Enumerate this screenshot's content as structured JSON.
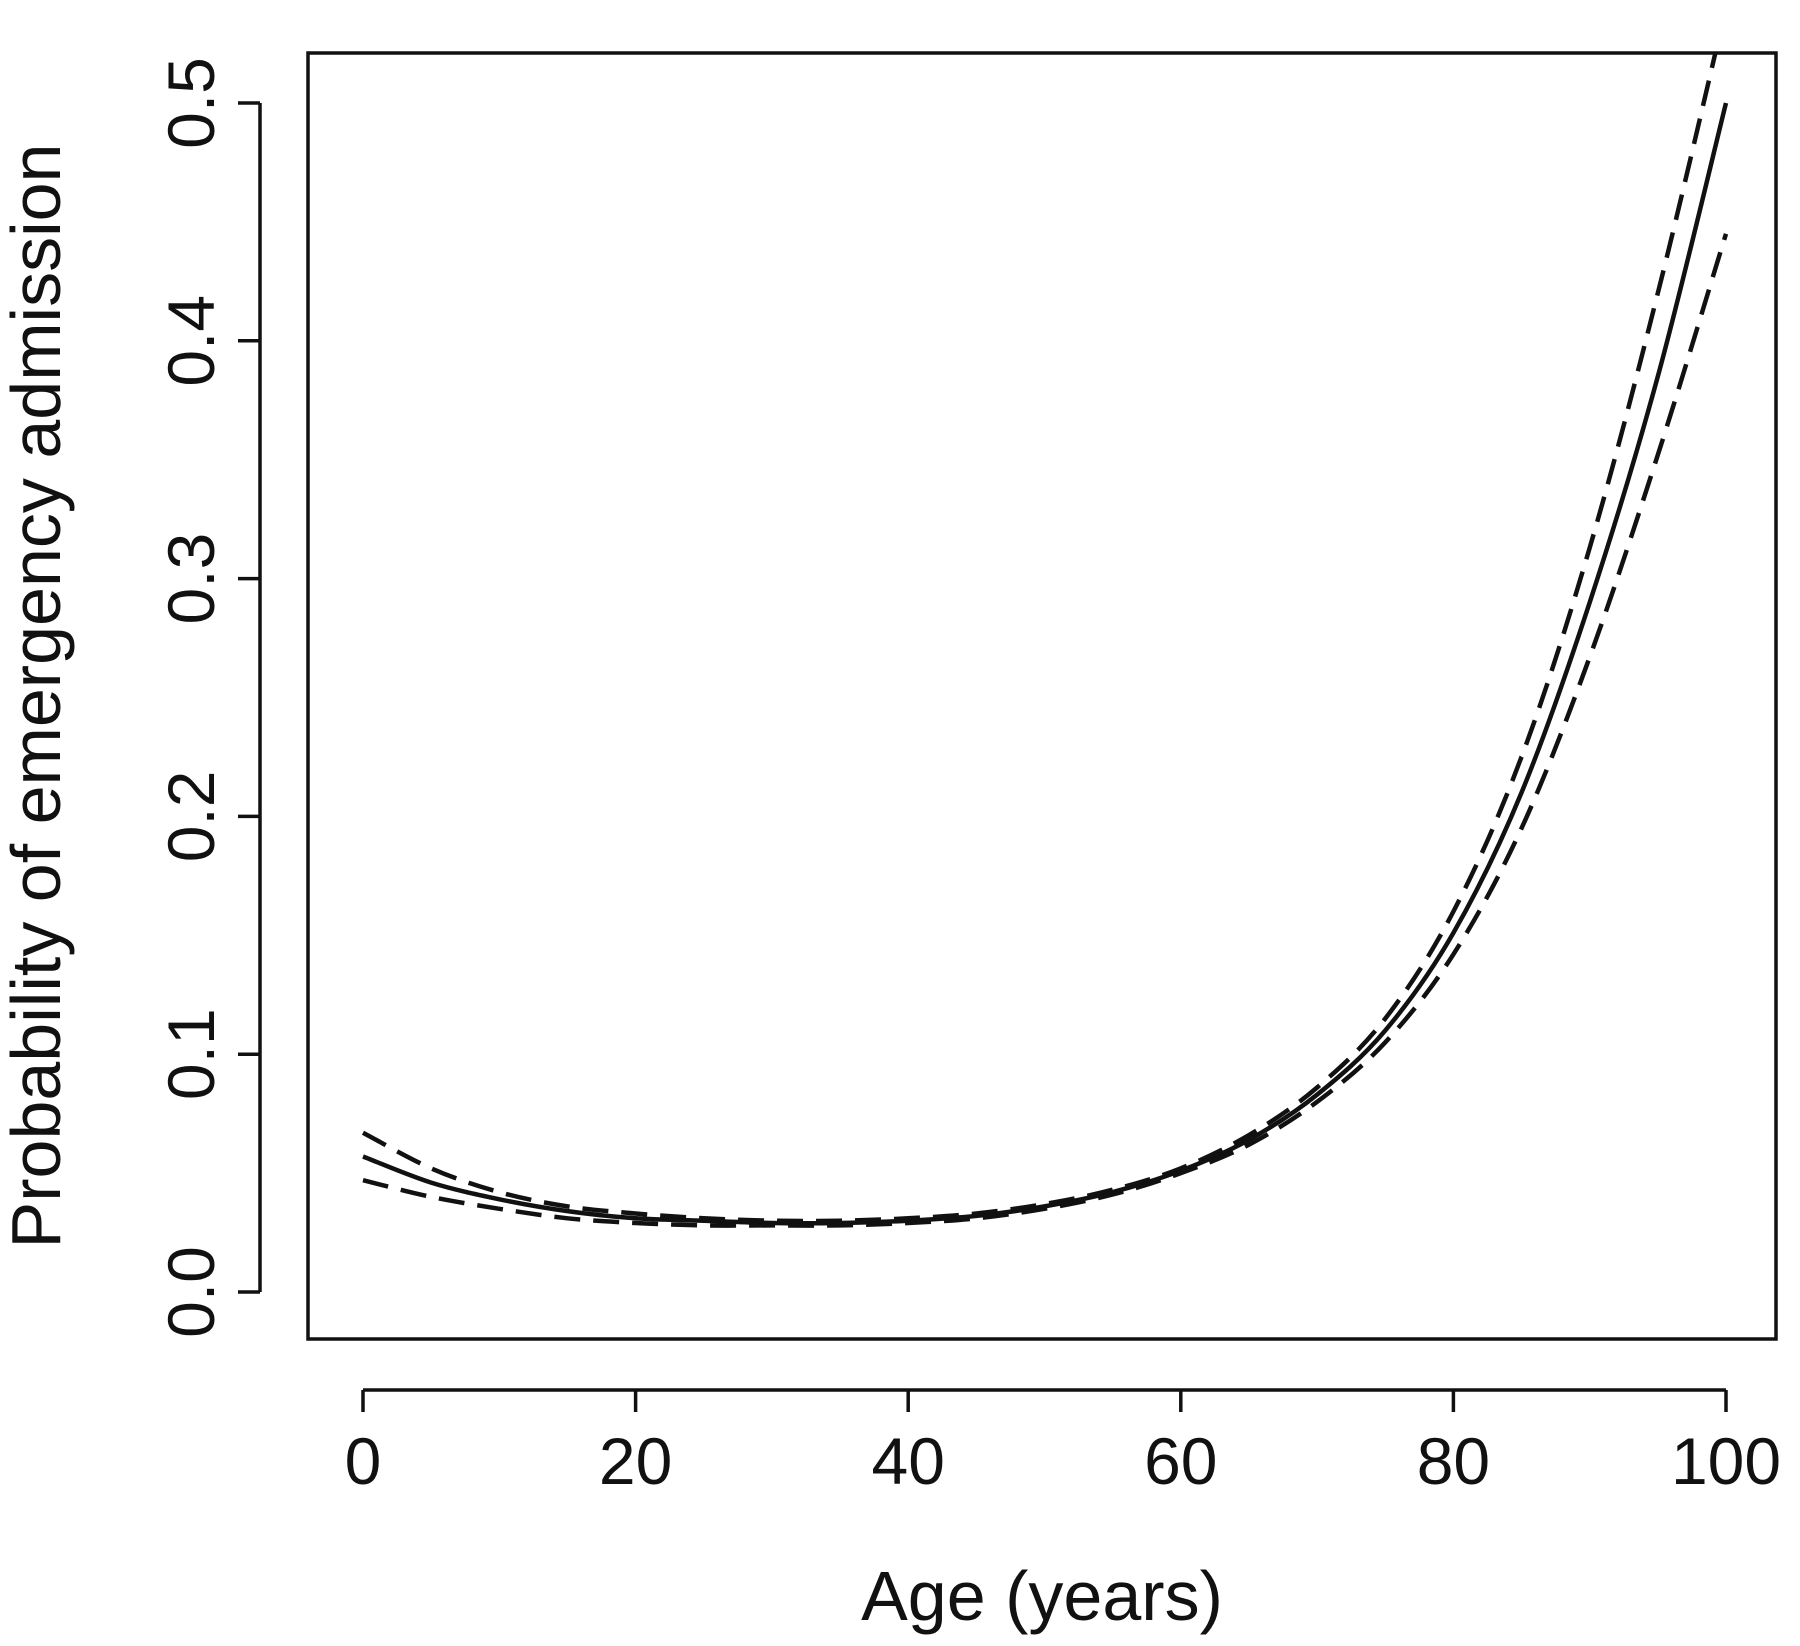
{
  "chart_data": {
    "type": "line",
    "title": "",
    "xlabel": "Age (years)",
    "ylabel": "Probability of emergency admission",
    "xlim": [
      0,
      100
    ],
    "ylim": [
      0.0,
      0.5
    ],
    "x_ticks": [
      "0",
      "20",
      "40",
      "60",
      "80",
      "100"
    ],
    "y_ticks": [
      "0.0",
      "0.1",
      "0.2",
      "0.3",
      "0.4",
      "0.5"
    ],
    "grid": false,
    "legend": "none",
    "series": [
      {
        "style": "solid",
        "x": [
          0,
          5,
          10,
          15,
          20,
          25,
          30,
          35,
          40,
          45,
          50,
          55,
          60,
          65,
          70,
          75,
          80,
          85,
          90,
          95,
          100
        ],
        "y": [
          0.057,
          0.046,
          0.039,
          0.034,
          0.031,
          0.03,
          0.029,
          0.029,
          0.03,
          0.032,
          0.036,
          0.042,
          0.051,
          0.064,
          0.083,
          0.11,
          0.151,
          0.21,
          0.29,
          0.385,
          0.5
        ]
      },
      {
        "style": "dashed",
        "x": [
          0,
          5,
          10,
          15,
          20,
          25,
          30,
          35,
          40,
          45,
          50,
          55,
          60,
          65,
          70,
          75,
          80,
          85,
          90,
          95,
          100
        ],
        "y": [
          0.067,
          0.052,
          0.042,
          0.036,
          0.033,
          0.031,
          0.03,
          0.03,
          0.031,
          0.033,
          0.037,
          0.043,
          0.052,
          0.066,
          0.086,
          0.115,
          0.16,
          0.225,
          0.313,
          0.42,
          0.54
        ]
      },
      {
        "style": "dashed",
        "x": [
          0,
          5,
          10,
          15,
          20,
          25,
          30,
          35,
          40,
          45,
          50,
          55,
          60,
          65,
          70,
          75,
          80,
          85,
          90,
          95,
          100
        ],
        "y": [
          0.047,
          0.04,
          0.035,
          0.031,
          0.029,
          0.028,
          0.028,
          0.028,
          0.029,
          0.031,
          0.035,
          0.041,
          0.05,
          0.062,
          0.08,
          0.105,
          0.142,
          0.195,
          0.267,
          0.352,
          0.445
        ]
      }
    ]
  }
}
